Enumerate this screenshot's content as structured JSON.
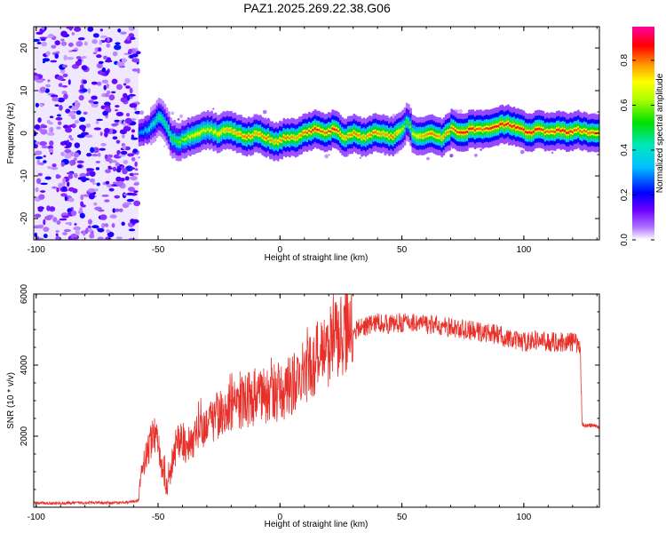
{
  "title": "PAZ1.2025.269.22.38.G06",
  "chart_data": [
    {
      "type": "heatmap",
      "xlabel": "Height of straight line (km)",
      "ylabel": "Frequency (Hz)",
      "xlim": [
        -101,
        131
      ],
      "ylim": [
        -25,
        25
      ],
      "xticks": [
        -100,
        -50,
        0,
        50,
        100
      ],
      "yticks": [
        -20,
        -10,
        0,
        10,
        20
      ],
      "colorbar": {
        "label": "Normalized spectral amplitude",
        "range": [
          0.0,
          0.95
        ],
        "ticks": [
          0.0,
          0.2,
          0.4,
          0.6,
          0.8
        ],
        "tick_labels": [
          "0.0",
          "0.2",
          "0.4",
          "0.6",
          "0.8"
        ],
        "colormap": "rainbow (white→violet→blue→cyan→green→yellow→orange→red→magenta)"
      },
      "noise_region_x": [
        -101,
        -58
      ],
      "ridge": {
        "x": [
          -58,
          -54,
          -50,
          -47,
          -45,
          -42,
          -38,
          -34,
          -30,
          -26,
          -22,
          -18,
          -14,
          -10,
          -6,
          -2,
          2,
          6,
          10,
          14,
          18,
          22,
          26,
          30,
          34,
          38,
          42,
          46,
          50,
          52,
          54,
          58,
          62,
          66,
          70,
          74,
          78,
          82,
          86,
          90,
          94,
          98,
          102,
          106,
          110,
          114,
          118,
          122,
          126,
          130
        ],
        "y": [
          0,
          1,
          4,
          2,
          -1,
          -2,
          -1,
          0,
          1,
          0,
          1,
          0,
          -1,
          0,
          -1,
          -2,
          -1,
          -1,
          0,
          1,
          0,
          1,
          -1,
          0,
          -1,
          0,
          0,
          -1,
          1,
          3,
          0,
          -1,
          0,
          -1,
          1,
          0,
          1,
          1,
          1,
          2,
          2,
          1,
          0,
          1,
          0,
          1,
          0,
          1,
          0,
          0
        ],
        "amplitude": [
          0.3,
          0.4,
          0.5,
          0.5,
          0.55,
          0.6,
          0.7,
          0.75,
          0.7,
          0.75,
          0.8,
          0.8,
          0.85,
          0.8,
          0.85,
          0.8,
          0.85,
          0.8,
          0.85,
          0.9,
          0.85,
          0.9,
          0.8,
          0.85,
          0.8,
          0.85,
          0.8,
          0.85,
          0.7,
          0.55,
          0.7,
          0.8,
          0.85,
          0.8,
          0.85,
          0.9,
          0.9,
          0.85,
          0.9,
          0.9,
          0.9,
          0.9,
          0.9,
          0.9,
          0.85,
          0.9,
          0.9,
          0.85,
          0.85,
          0.85
        ]
      }
    },
    {
      "type": "line",
      "xlabel": "Height of straight line (km)",
      "ylabel": "SNR (10 * v/v)",
      "xlim": [
        -101,
        131
      ],
      "ylim": [
        0,
        6000
      ],
      "xticks": [
        -100,
        -50,
        0,
        50,
        100
      ],
      "yticks": [
        2000,
        4000,
        6000
      ],
      "color": "#e8302a",
      "series": [
        {
          "x": [
            -101,
            -90,
            -80,
            -70,
            -62,
            -58,
            -57,
            -55,
            -53,
            -51,
            -49,
            -47,
            -45,
            -43,
            -41,
            -38,
            -35,
            -30,
            -25,
            -20,
            -15,
            -10,
            -5,
            0,
            5,
            10,
            15,
            20,
            25,
            30,
            35,
            40,
            45,
            50,
            55,
            60,
            65,
            70,
            75,
            80,
            85,
            90,
            95,
            100,
            105,
            110,
            115,
            120,
            123,
            124,
            125,
            128,
            131
          ],
          "y": [
            120,
            110,
            130,
            120,
            140,
            200,
            900,
            1500,
            1800,
            2100,
            1300,
            500,
            800,
            1600,
            1900,
            1700,
            2000,
            2400,
            2600,
            2800,
            3000,
            3100,
            3150,
            3200,
            3450,
            3750,
            4150,
            4500,
            4850,
            4950,
            5100,
            5200,
            5150,
            5200,
            5200,
            5150,
            5100,
            5050,
            5000,
            4950,
            4900,
            4850,
            4700,
            4650,
            4700,
            4650,
            4650,
            4650,
            4600,
            2350,
            2300,
            2300,
            2250
          ]
        }
      ]
    }
  ]
}
